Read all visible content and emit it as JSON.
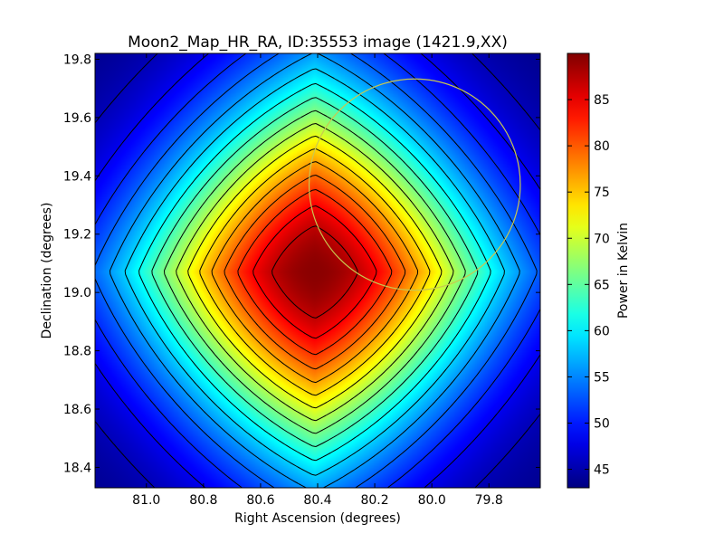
{
  "chart_data": {
    "type": "heatmap",
    "title": "Moon2_Map_HR_RA, ID:35553 image (1421.9,XX)",
    "xlabel": "Right Ascension (degrees)",
    "ylabel": "Declination (degrees)",
    "x_reversed": true,
    "xlim": [
      81.18,
      79.62
    ],
    "ylim": [
      18.33,
      19.82
    ],
    "xticks": [
      81.0,
      80.8,
      80.6,
      80.4,
      80.2,
      80.0,
      79.8
    ],
    "xtick_labels": [
      "81.0",
      "80.8",
      "80.6",
      "80.4",
      "80.2",
      "80.0",
      "79.8"
    ],
    "yticks": [
      18.4,
      18.6,
      18.8,
      19.0,
      19.2,
      19.4,
      19.6,
      19.8
    ],
    "ytick_labels": [
      "18.4",
      "18.6",
      "18.8",
      "19.0",
      "19.2",
      "19.4",
      "19.6",
      "19.8"
    ],
    "colormap": "jet",
    "colorbar": {
      "label": "Power in Kelvin",
      "range": [
        43,
        90
      ],
      "ticks": [
        45,
        50,
        55,
        60,
        65,
        70,
        75,
        80,
        85
      ],
      "tick_labels": [
        "45",
        "50",
        "55",
        "60",
        "65",
        "70",
        "75",
        "80",
        "85"
      ]
    },
    "field": {
      "peak_ra": 80.41,
      "peak_dec": 19.07,
      "peak_value": 89.5,
      "min_value": 43.0
    },
    "contour_count": 17,
    "circle": {
      "center_ra": 80.06,
      "center_dec": 19.37,
      "radius_deg": 0.37,
      "color": "#c8c850"
    }
  }
}
